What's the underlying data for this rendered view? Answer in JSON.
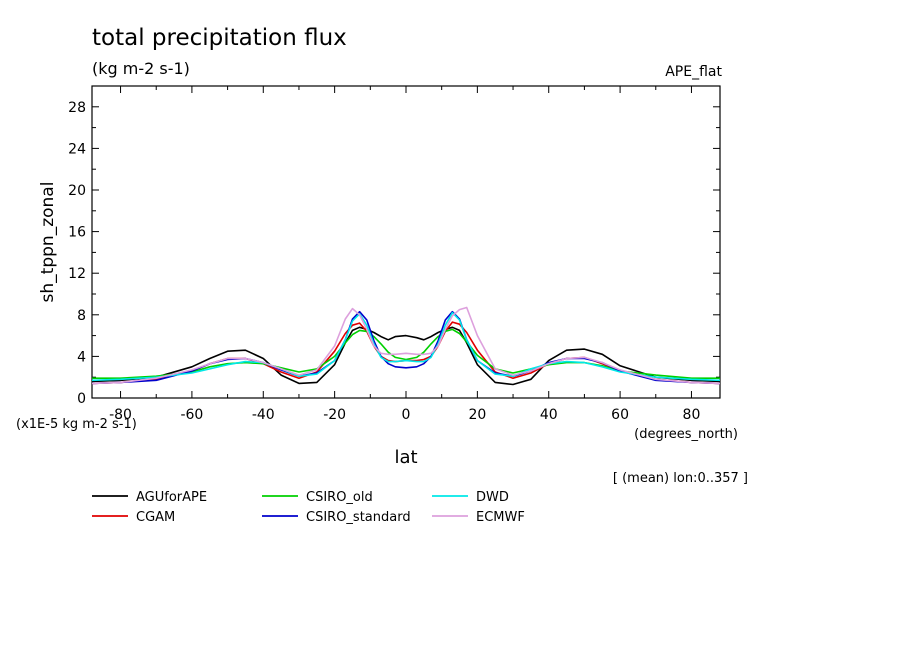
{
  "title": "total precipitation flux",
  "units_label": "(kg m-2 s-1)",
  "experiment": "APE_flat",
  "ylabel": "sh_tppn_zonal",
  "xlabel": "lat",
  "x_units": "(degrees_north)",
  "y_scale_note": "(x1E-5 kg m-2 s-1)",
  "mean_note": "[ (mean) lon:0..357 ]",
  "chart_data": {
    "type": "line",
    "title": "total precipitation flux",
    "xlabel": "lat",
    "ylabel": "sh_tppn_zonal",
    "xlim": [
      -88,
      88
    ],
    "ylim": [
      0,
      30
    ],
    "xticks": [
      -80,
      -60,
      -40,
      -20,
      0,
      20,
      40,
      60,
      80
    ],
    "yticks": [
      0,
      4,
      8,
      12,
      16,
      20,
      24,
      28
    ],
    "x": [
      -88,
      -80,
      -70,
      -60,
      -55,
      -50,
      -45,
      -40,
      -35,
      -30,
      -25,
      -20,
      -17,
      -15,
      -13,
      -11,
      -9,
      -7,
      -5,
      -3,
      0,
      3,
      5,
      7,
      9,
      11,
      13,
      15,
      17,
      20,
      25,
      30,
      35,
      40,
      45,
      50,
      55,
      60,
      70,
      80,
      88
    ],
    "series": [
      {
        "name": "AGUforAPE",
        "color": "#000000",
        "values": [
          1.6,
          1.7,
          2.0,
          3.0,
          3.8,
          4.5,
          4.6,
          3.8,
          2.2,
          1.4,
          1.5,
          3.2,
          5.3,
          6.5,
          6.8,
          6.6,
          6.3,
          5.9,
          5.6,
          5.9,
          6.0,
          5.8,
          5.6,
          5.9,
          6.3,
          6.6,
          6.8,
          6.5,
          5.3,
          3.2,
          1.5,
          1.3,
          1.8,
          3.6,
          4.6,
          4.7,
          4.2,
          3.1,
          2.0,
          1.7,
          1.6
        ]
      },
      {
        "name": "CGAM",
        "color": "#e00000",
        "values": [
          1.4,
          1.5,
          1.8,
          2.6,
          3.3,
          3.8,
          3.8,
          3.3,
          2.5,
          1.9,
          2.5,
          4.5,
          6.2,
          7.0,
          7.2,
          6.4,
          5.0,
          4.0,
          3.6,
          3.5,
          3.6,
          3.6,
          3.7,
          4.0,
          5.0,
          6.4,
          7.3,
          7.1,
          6.3,
          4.6,
          2.5,
          1.9,
          2.4,
          3.3,
          3.8,
          3.9,
          3.3,
          2.6,
          1.8,
          1.5,
          1.4
        ]
      },
      {
        "name": "CSIRO_old",
        "color": "#00d000",
        "values": [
          1.9,
          1.9,
          2.1,
          2.5,
          3.0,
          3.3,
          3.4,
          3.3,
          2.9,
          2.5,
          2.8,
          4.0,
          5.3,
          6.1,
          6.5,
          6.4,
          5.9,
          5.2,
          4.4,
          3.9,
          3.7,
          3.9,
          4.4,
          5.2,
          5.9,
          6.4,
          6.6,
          6.2,
          5.4,
          4.1,
          2.8,
          2.4,
          2.8,
          3.2,
          3.4,
          3.4,
          3.1,
          2.6,
          2.2,
          1.9,
          1.9
        ]
      },
      {
        "name": "CSIRO_standard",
        "color": "#0000cc",
        "values": [
          1.4,
          1.5,
          1.7,
          2.6,
          3.3,
          3.7,
          3.8,
          3.4,
          2.7,
          2.1,
          2.4,
          3.6,
          5.6,
          7.6,
          8.3,
          7.5,
          5.5,
          4.0,
          3.3,
          3.0,
          2.9,
          3.0,
          3.3,
          4.0,
          5.5,
          7.5,
          8.3,
          7.6,
          5.6,
          3.6,
          2.4,
          2.1,
          2.6,
          3.4,
          3.8,
          3.8,
          3.4,
          2.6,
          1.7,
          1.5,
          1.4
        ]
      },
      {
        "name": "DWD",
        "color": "#00e8e8",
        "values": [
          1.7,
          1.8,
          2.0,
          2.4,
          2.8,
          3.2,
          3.5,
          3.4,
          2.8,
          2.1,
          2.3,
          3.6,
          5.6,
          7.4,
          8.1,
          7.0,
          5.2,
          3.9,
          3.5,
          3.5,
          3.6,
          3.5,
          3.5,
          3.9,
          5.2,
          7.0,
          8.2,
          7.5,
          5.6,
          3.6,
          2.3,
          2.1,
          2.8,
          3.3,
          3.5,
          3.4,
          3.0,
          2.5,
          2.0,
          1.8,
          1.7
        ]
      },
      {
        "name": "ECMWF",
        "color": "#dda0dd",
        "values": [
          1.4,
          1.5,
          1.9,
          2.7,
          3.3,
          3.8,
          3.8,
          3.4,
          2.8,
          2.2,
          2.7,
          5.0,
          7.6,
          8.6,
          8.0,
          6.6,
          5.0,
          4.3,
          4.2,
          4.2,
          4.3,
          4.2,
          4.2,
          4.3,
          5.0,
          6.6,
          7.9,
          8.5,
          8.7,
          6.0,
          2.8,
          2.2,
          2.6,
          3.3,
          3.8,
          3.9,
          3.4,
          2.7,
          1.8,
          1.5,
          1.4
        ]
      }
    ]
  }
}
